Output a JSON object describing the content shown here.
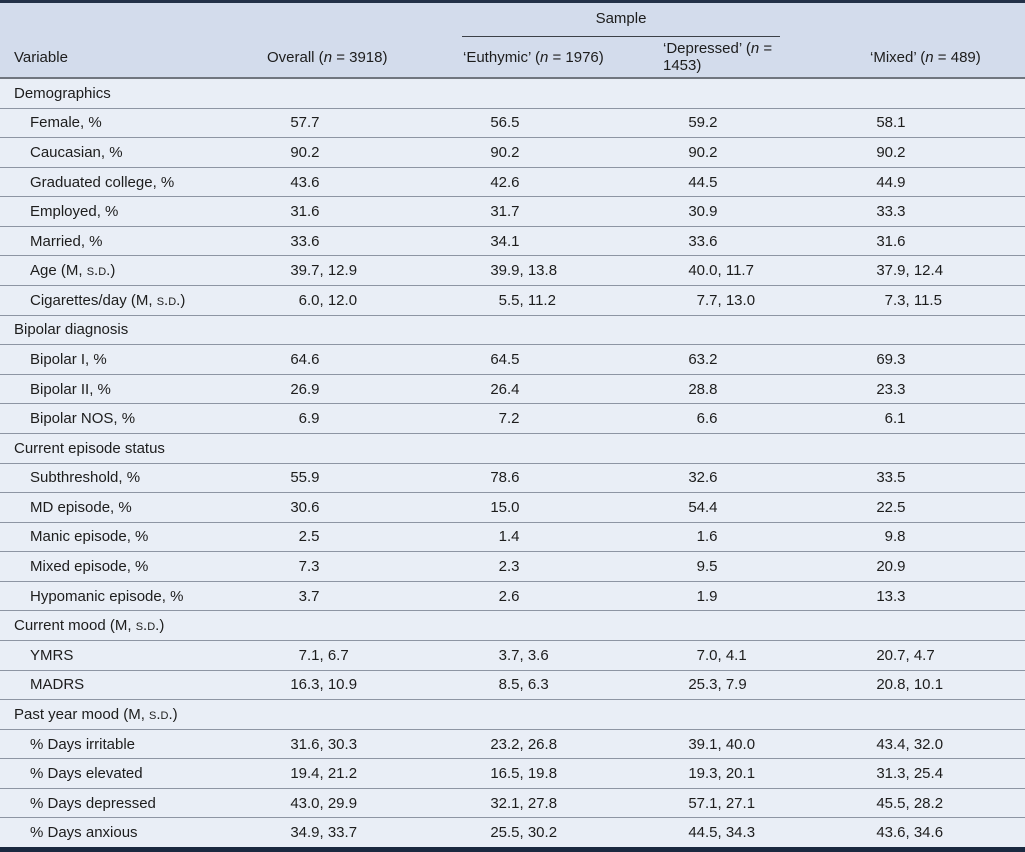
{
  "colors": {
    "header_bg": "#d3dcec",
    "body_bg": "#e9eef6",
    "row_divider": "#8d95a3",
    "header_divider": "#70767f",
    "frame_top": "#233148",
    "frame_bottom": "#1a2940",
    "text": "#1d1d1d"
  },
  "table": {
    "spanner_label": "Sample",
    "columns": [
      {
        "label": "Variable"
      },
      {
        "label": "Overall (n = 3918)"
      },
      {
        "label": "‘Euthymic’ (n = 1976)"
      },
      {
        "label": "‘Depressed’ (n = 1453)"
      },
      {
        "label": "‘Mixed’ (n = 489)"
      }
    ],
    "sections": [
      {
        "header": "Demographics",
        "rows": [
          {
            "label": "Female, %",
            "values": [
              "57.7",
              "56.5",
              "59.2",
              "58.1"
            ]
          },
          {
            "label": "Caucasian, %",
            "values": [
              "90.2",
              "90.2",
              "90.2",
              "90.2"
            ]
          },
          {
            "label": "Graduated college, %",
            "values": [
              "43.6",
              "42.6",
              "44.5",
              "44.9"
            ]
          },
          {
            "label": "Employed, %",
            "values": [
              "31.6",
              "31.7",
              "30.9",
              "33.3"
            ]
          },
          {
            "label": "Married, %",
            "values": [
              "33.6",
              "34.1",
              "33.6",
              "31.6"
            ]
          },
          {
            "label": "Age (M, s.d.)",
            "values": [
              "39.7, 12.9",
              "39.9, 13.8",
              "40.0, 11.7",
              "37.9, 12.4"
            ]
          },
          {
            "label": "Cigarettes/day (M, s.d.)",
            "values": [
              "6.0, 12.0",
              "5.5, 11.2",
              "7.7, 13.0",
              "7.3, 11.5"
            ]
          }
        ]
      },
      {
        "header": "Bipolar diagnosis",
        "rows": [
          {
            "label": "Bipolar I, %",
            "values": [
              "64.6",
              "64.5",
              "63.2",
              "69.3"
            ]
          },
          {
            "label": "Bipolar II, %",
            "values": [
              "26.9",
              "26.4",
              "28.8",
              "23.3"
            ]
          },
          {
            "label": "Bipolar NOS, %",
            "values": [
              "6.9",
              "7.2",
              "6.6",
              "6.1"
            ]
          }
        ]
      },
      {
        "header": "Current episode status",
        "rows": [
          {
            "label": "Subthreshold, %",
            "values": [
              "55.9",
              "78.6",
              "32.6",
              "33.5"
            ]
          },
          {
            "label": "MD episode, %",
            "values": [
              "30.6",
              "15.0",
              "54.4",
              "22.5"
            ]
          },
          {
            "label": "Manic episode, %",
            "values": [
              "2.5",
              "1.4",
              "1.6",
              "9.8"
            ]
          },
          {
            "label": "Mixed episode, %",
            "values": [
              "7.3",
              "2.3",
              "9.5",
              "20.9"
            ]
          },
          {
            "label": "Hypomanic episode, %",
            "values": [
              "3.7",
              "2.6",
              "1.9",
              "13.3"
            ]
          }
        ]
      },
      {
        "header": "Current mood (M, s.d.)",
        "rows": [
          {
            "label": "YMRS",
            "values": [
              "7.1, 6.7",
              "3.7, 3.6",
              "7.0, 4.1",
              "20.7, 4.7"
            ]
          },
          {
            "label": "MADRS",
            "values": [
              "16.3, 10.9",
              "8.5, 6.3",
              "25.3, 7.9",
              "20.8, 10.1"
            ]
          }
        ]
      },
      {
        "header": "Past year mood (M, s.d.)",
        "rows": [
          {
            "label": "% Days irritable",
            "values": [
              "31.6, 30.3",
              "23.2, 26.8",
              "39.1, 40.0",
              "43.4, 32.0"
            ]
          },
          {
            "label": "% Days elevated",
            "values": [
              "19.4, 21.2",
              "16.5, 19.8",
              "19.3, 20.1",
              "31.3, 25.4"
            ]
          },
          {
            "label": "% Days depressed",
            "values": [
              "43.0, 29.9",
              "32.1, 27.8",
              "57.1, 27.1",
              "45.5, 28.2"
            ]
          },
          {
            "label": "% Days anxious",
            "values": [
              "34.9, 33.7",
              "25.5, 30.2",
              "44.5, 34.3",
              "43.6, 34.6"
            ]
          }
        ]
      }
    ]
  }
}
